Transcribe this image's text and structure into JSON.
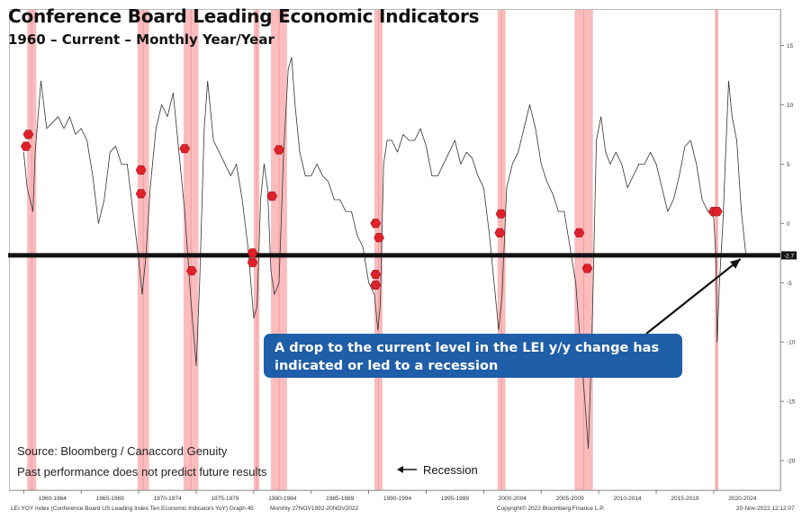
{
  "header": {
    "title": "Conference Board Leading Economic Indicators",
    "subtitle": "1960 – Current – Monthly Year/Year"
  },
  "notes": {
    "source": "Source: Bloomberg / Canaccord Genuity",
    "disclaimer": "Past performance does not predict future results",
    "recession_legend": "Recession"
  },
  "callout": {
    "text": "A drop to the current level in the LEI y/y change has indicated or led to a recession",
    "color": "#1f5ea8"
  },
  "footer": {
    "left": "LEI YOY Index (Conference Board US Leading Index Ten Economic Indicators YoY) Graph 45",
    "mid": "Monthly 27NOV1992-20NOV2022",
    "right": "Copyright© 2022 Bloomberg Finance L.P.",
    "date": "20-Nov-2022 12:12:07"
  },
  "colors": {
    "recession_band": "#f9b0b0",
    "recession_line": "#f08080",
    "current_level_line": "#111111",
    "series_line": "#333333",
    "marker": "#e0202a"
  },
  "chart_data": {
    "type": "line",
    "xlim": [
      1958.8,
      2025.8
    ],
    "ylim": [
      -22.5,
      18
    ],
    "y_ticks": [
      15,
      10,
      5,
      0,
      -5,
      -10,
      -15,
      -20
    ],
    "y_tick_labels": [
      "15",
      "10",
      "5",
      "0",
      "-5",
      "-10",
      "-15",
      "-20"
    ],
    "x_tick_labels": [
      "1960-1964",
      "1965-1969",
      "1970-1974",
      "1975-1979",
      "1980-1984",
      "1985-1989",
      "1990-1994",
      "1995-1999",
      "2000-2004",
      "2005-2009",
      "2010-2014",
      "2015-2019",
      "2020-2024"
    ],
    "x_tick_centers": [
      1962.5,
      1967.5,
      1972.5,
      1977.5,
      1982.5,
      1987.5,
      1992.5,
      1997.5,
      2002.5,
      2007.5,
      2012.5,
      2017.5,
      2022.5
    ],
    "current_level": -2.7,
    "current_level_label": "-2.7",
    "recessions": [
      [
        1960.3,
        1961.1
      ],
      [
        1969.9,
        1970.9
      ],
      [
        1973.9,
        1975.2
      ],
      [
        1980.0,
        1980.5
      ],
      [
        1981.5,
        1982.9
      ],
      [
        1990.5,
        1991.2
      ],
      [
        2001.2,
        2001.9
      ],
      [
        2007.9,
        2009.5
      ],
      [
        2020.1,
        2020.4
      ]
    ],
    "series": [
      {
        "x": [
          1960.0,
          1960.3,
          1960.8,
          1961.0,
          1961.5,
          1962.0,
          1962.5,
          1963.0,
          1963.5,
          1964.0,
          1964.5,
          1965.0,
          1965.5,
          1966.0,
          1966.5,
          1967.0,
          1967.5,
          1968.0,
          1968.5,
          1969.0,
          1969.5,
          1970.0,
          1970.3,
          1970.6,
          1971.0,
          1971.5,
          1972.0,
          1972.5,
          1973.0,
          1973.5,
          1974.0,
          1974.5,
          1975.0,
          1975.3,
          1975.7,
          1976.0,
          1976.5,
          1977.0,
          1977.5,
          1978.0,
          1978.5,
          1979.0,
          1979.5,
          1980.0,
          1980.3,
          1980.6,
          1980.9,
          1981.2,
          1981.5,
          1981.8,
          1982.2,
          1982.6,
          1983.0,
          1983.3,
          1983.6,
          1984.0,
          1984.5,
          1985.0,
          1985.5,
          1986.0,
          1986.5,
          1987.0,
          1987.5,
          1988.0,
          1988.5,
          1989.0,
          1989.5,
          1990.0,
          1990.5,
          1990.8,
          1991.0,
          1991.3,
          1991.6,
          1992.0,
          1992.5,
          1993.0,
          1993.5,
          1994.0,
          1994.5,
          1995.0,
          1995.5,
          1996.0,
          1996.5,
          1997.0,
          1997.5,
          1998.0,
          1998.5,
          1999.0,
          1999.5,
          2000.0,
          2000.5,
          2001.0,
          2001.3,
          2001.6,
          2002.0,
          2002.5,
          2003.0,
          2003.5,
          2004.0,
          2004.5,
          2005.0,
          2005.5,
          2006.0,
          2006.5,
          2007.0,
          2007.5,
          2008.0,
          2008.4,
          2008.8,
          2009.1,
          2009.4,
          2009.8,
          2010.2,
          2010.6,
          2011.0,
          2011.5,
          2012.0,
          2012.5,
          2013.0,
          2013.5,
          2014.0,
          2014.5,
          2015.0,
          2015.5,
          2016.0,
          2016.5,
          2017.0,
          2017.5,
          2018.0,
          2018.5,
          2019.0,
          2019.5,
          2020.0,
          2020.2,
          2020.3,
          2020.5,
          2020.8,
          2021.0,
          2021.3,
          2021.6,
          2022.0,
          2022.4,
          2022.8
        ],
        "y": [
          6.0,
          3.0,
          1.0,
          6.0,
          12.0,
          8.0,
          8.5,
          9.0,
          8.0,
          9.0,
          7.5,
          8.0,
          7.0,
          4.0,
          0.0,
          2.0,
          6.0,
          6.5,
          5.0,
          5.0,
          1.0,
          -3.0,
          -6.0,
          -3.0,
          3.0,
          8.0,
          10.0,
          9.0,
          11.0,
          6.0,
          1.0,
          -6.0,
          -12.0,
          -5.0,
          8.0,
          12.0,
          7.0,
          6.0,
          5.0,
          4.0,
          5.0,
          2.0,
          -2.0,
          -8.0,
          -7.0,
          2.0,
          5.0,
          3.0,
          -4.0,
          -6.0,
          -5.0,
          6.0,
          13.0,
          14.0,
          10.0,
          6.0,
          4.0,
          4.0,
          5.0,
          4.0,
          3.5,
          2.0,
          2.0,
          1.0,
          1.0,
          -1.0,
          -2.0,
          -5.0,
          -6.0,
          -9.0,
          -7.0,
          5.0,
          7.0,
          7.0,
          6.0,
          7.5,
          7.0,
          7.0,
          8.0,
          6.5,
          4.0,
          4.0,
          5.0,
          6.0,
          7.0,
          5.0,
          6.0,
          5.5,
          4.0,
          3.0,
          -1.0,
          -6.0,
          -9.0,
          -6.0,
          3.0,
          5.0,
          6.0,
          8.0,
          10.0,
          8.0,
          5.0,
          3.5,
          2.5,
          1.0,
          1.0,
          -2.0,
          -5.0,
          -10.0,
          -15.0,
          -19.0,
          -10.0,
          7.0,
          9.0,
          6.0,
          5.0,
          6.0,
          5.0,
          3.0,
          4.0,
          5.0,
          5.0,
          6.0,
          5.0,
          3.0,
          1.0,
          2.0,
          4.0,
          6.5,
          7.0,
          5.0,
          2.0,
          1.0,
          0.5,
          -3.0,
          -10.0,
          -5.0,
          0.0,
          5.0,
          12.0,
          9.0,
          7.0,
          1.0,
          -2.7
        ]
      }
    ],
    "markers": [
      {
        "x": 1960.2,
        "y": 6.5
      },
      {
        "x": 1960.4,
        "y": 7.5
      },
      {
        "x": 1970.2,
        "y": 4.5
      },
      {
        "x": 1970.2,
        "y": 2.5
      },
      {
        "x": 1974.0,
        "y": 6.3
      },
      {
        "x": 1974.6,
        "y": -4.0
      },
      {
        "x": 1979.9,
        "y": -2.5
      },
      {
        "x": 1979.9,
        "y": -3.3
      },
      {
        "x": 1981.6,
        "y": 2.3
      },
      {
        "x": 1982.2,
        "y": 6.2
      },
      {
        "x": 1990.6,
        "y": 0.0
      },
      {
        "x": 1990.9,
        "y": -1.2
      },
      {
        "x": 1990.6,
        "y": -4.3
      },
      {
        "x": 1990.6,
        "y": -5.2
      },
      {
        "x": 2001.5,
        "y": 0.8
      },
      {
        "x": 2001.4,
        "y": -0.8
      },
      {
        "x": 2008.3,
        "y": -0.8
      },
      {
        "x": 2009.0,
        "y": -3.8
      },
      {
        "x": 2020.0,
        "y": 1.0
      },
      {
        "x": 2020.3,
        "y": 1.0
      }
    ]
  }
}
